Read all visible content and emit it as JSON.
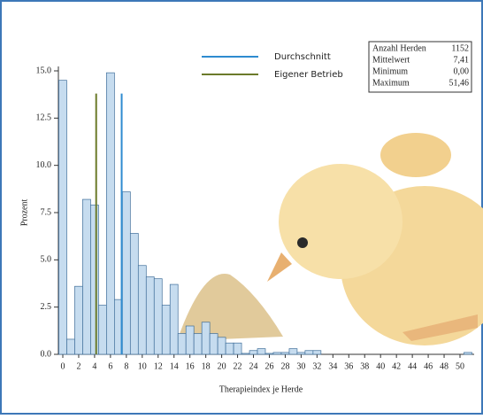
{
  "chart_data": {
    "type": "histogram",
    "x_label": "Therapieindex je Herde",
    "y_label": "Prozent",
    "bins": [
      -0.5,
      0.5,
      1.5,
      2.5,
      3.5,
      4.5,
      5.5,
      6.5,
      7.5,
      8.5,
      9.5,
      10.5,
      11.5,
      12.5,
      13.5,
      14.5,
      15.5,
      16.5,
      17.5,
      18.5,
      19.5,
      20.5,
      21.5,
      22.5,
      23.5,
      24.5,
      25.5,
      26.5,
      27.5,
      28.5,
      29.5,
      30.5,
      31.5,
      32.5,
      33.5,
      34.5,
      35.5,
      36.5,
      37.5,
      38.5,
      39.5,
      40.5,
      41.5,
      42.5,
      43.5,
      44.5,
      45.5,
      46.5,
      47.5,
      48.5,
      49.5,
      50.5,
      51.5
    ],
    "values": [
      14.5,
      0.8,
      3.6,
      8.2,
      7.9,
      2.6,
      14.9,
      2.9,
      8.6,
      6.4,
      4.7,
      4.1,
      4.0,
      2.6,
      3.7,
      1.1,
      1.5,
      1.1,
      1.7,
      1.1,
      0.9,
      0.6,
      0.6,
      0.05,
      0.2,
      0.3,
      0.05,
      0.1,
      0.1,
      0.3,
      0.1,
      0.2,
      0.2,
      0,
      0,
      0,
      0,
      0,
      0,
      0,
      0,
      0,
      0,
      0,
      0,
      0,
      0,
      0,
      0,
      0,
      0,
      0.1
    ],
    "color": "#c6dcef",
    "edge_color": "#3f6e9a",
    "xlim": [
      -1,
      52
    ],
    "xticks": [
      0,
      2,
      4,
      6,
      8,
      10,
      12,
      14,
      16,
      18,
      20,
      22,
      24,
      26,
      28,
      30,
      32,
      34,
      36,
      38,
      40,
      42,
      44,
      46,
      48,
      50
    ],
    "ylim": [
      0,
      15.6
    ],
    "yticks": [
      {
        "value": 0,
        "label": "0.0"
      },
      2.5,
      {
        "value": 5,
        "label": "5.0"
      },
      7.5,
      {
        "value": 10,
        "label": "10.0"
      },
      12.5,
      {
        "value": 15,
        "label": "15.0"
      }
    ],
    "reference_lines": [
      {
        "name": "Durchschnitt",
        "color": "#2e8bd0",
        "value": 7.41,
        "height": 13.8
      },
      {
        "name": "Eigener Betrieb",
        "color": "#6b7a2a",
        "value": 4.2,
        "height": 13.8
      }
    ],
    "stats_table": [
      [
        "Anzahl Herden",
        "1152"
      ],
      [
        "Mittelwert",
        "7,41"
      ],
      [
        "Minimum",
        "0,00"
      ],
      [
        "Maximum",
        "51,46"
      ]
    ]
  }
}
